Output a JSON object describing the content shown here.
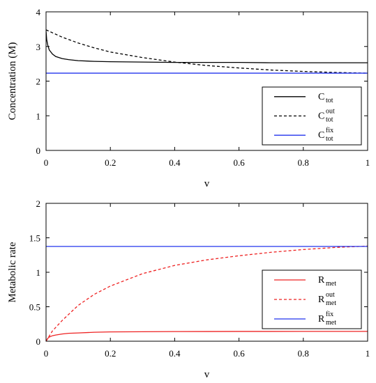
{
  "chart_data": [
    {
      "type": "line",
      "xlabel": "v",
      "ylabel": "Concentration (M)",
      "xlim": [
        0,
        1
      ],
      "ylim": [
        0,
        4
      ],
      "x_ticks": [
        "0",
        "0.2",
        "0.4",
        "0.6",
        "0.8",
        "1"
      ],
      "y_ticks": [
        "0",
        "1",
        "2",
        "3",
        "4"
      ],
      "x_tick_values": [
        0,
        0.2,
        0.4,
        0.6,
        0.8,
        1
      ],
      "y_tick_values": [
        0,
        1,
        2,
        3,
        4
      ],
      "grid": false,
      "legend_position": "bottom-right",
      "series": [
        {
          "name": "C_tot",
          "legend_base": "C",
          "legend_sub": "tot",
          "legend_sup": "",
          "color": "#000000",
          "dash": "solid",
          "x": [
            0,
            0.002,
            0.005,
            0.01,
            0.02,
            0.03,
            0.05,
            0.07,
            0.1,
            0.15,
            0.2,
            0.3,
            0.4,
            0.5,
            0.6,
            0.7,
            0.8,
            0.9,
            1.0
          ],
          "y": [
            3.45,
            3.2,
            3.05,
            2.9,
            2.78,
            2.71,
            2.65,
            2.62,
            2.59,
            2.57,
            2.56,
            2.55,
            2.54,
            2.54,
            2.54,
            2.53,
            2.53,
            2.53,
            2.53
          ]
        },
        {
          "name": "C_tot^out",
          "legend_base": "C",
          "legend_sub": "tot",
          "legend_sup": "out",
          "color": "#000000",
          "dash": "dashed",
          "x": [
            0,
            0.05,
            0.1,
            0.15,
            0.2,
            0.3,
            0.4,
            0.5,
            0.6,
            0.7,
            0.8,
            0.9,
            1.0
          ],
          "y": [
            3.48,
            3.27,
            3.1,
            2.96,
            2.84,
            2.68,
            2.55,
            2.45,
            2.38,
            2.32,
            2.28,
            2.25,
            2.23
          ]
        },
        {
          "name": "C_tot^fix",
          "legend_base": "C",
          "legend_sub": "tot",
          "legend_sup": "fix",
          "color": "#2233ee",
          "dash": "solid",
          "x": [
            0,
            1
          ],
          "y": [
            2.23,
            2.23
          ]
        }
      ]
    },
    {
      "type": "line",
      "xlabel": "v",
      "ylabel": "Metabolic rate",
      "xlim": [
        0,
        1
      ],
      "ylim": [
        0,
        2
      ],
      "x_ticks": [
        "0",
        "0.2",
        "0.4",
        "0.6",
        "0.8",
        "1"
      ],
      "y_ticks": [
        "0",
        "0.5",
        "1",
        "1.5",
        "2"
      ],
      "x_tick_values": [
        0,
        0.2,
        0.4,
        0.6,
        0.8,
        1
      ],
      "y_tick_values": [
        0,
        0.5,
        1,
        1.5,
        2
      ],
      "grid": false,
      "legend_position": "bottom-right",
      "series": [
        {
          "name": "R_met",
          "legend_base": "R",
          "legend_sub": "met",
          "legend_sup": "",
          "color": "#ee2222",
          "dash": "solid",
          "x": [
            0,
            0.005,
            0.01,
            0.02,
            0.03,
            0.05,
            0.07,
            0.1,
            0.15,
            0.2,
            0.3,
            0.4,
            0.5,
            0.6,
            0.7,
            0.8,
            0.9,
            1.0
          ],
          "y": [
            0.0,
            0.04,
            0.06,
            0.08,
            0.09,
            0.105,
            0.115,
            0.12,
            0.13,
            0.135,
            0.138,
            0.14,
            0.141,
            0.142,
            0.142,
            0.143,
            0.143,
            0.143
          ]
        },
        {
          "name": "R_met^out",
          "legend_base": "R",
          "legend_sub": "met",
          "legend_sup": "out",
          "color": "#ee2222",
          "dash": "dashed",
          "x": [
            0,
            0.02,
            0.05,
            0.1,
            0.15,
            0.2,
            0.3,
            0.4,
            0.5,
            0.6,
            0.7,
            0.8,
            0.9,
            1.0
          ],
          "y": [
            0.0,
            0.15,
            0.3,
            0.52,
            0.68,
            0.8,
            0.98,
            1.1,
            1.18,
            1.24,
            1.29,
            1.33,
            1.36,
            1.38
          ]
        },
        {
          "name": "R_met^fix",
          "legend_base": "R",
          "legend_sub": "met",
          "legend_sup": "fix",
          "color": "#2233ee",
          "dash": "solid",
          "x": [
            0,
            1
          ],
          "y": [
            1.375,
            1.375
          ]
        }
      ]
    }
  ]
}
